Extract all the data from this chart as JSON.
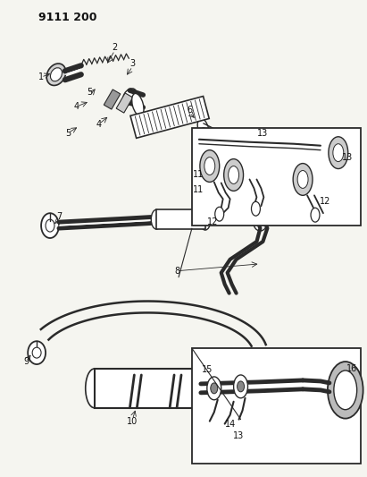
{
  "title_code": "9111 200",
  "bg_color": "#f5f5f0",
  "line_color": "#2a2a2a",
  "label_color": "#111111",
  "title_fontsize": 9,
  "label_fontsize": 7
}
